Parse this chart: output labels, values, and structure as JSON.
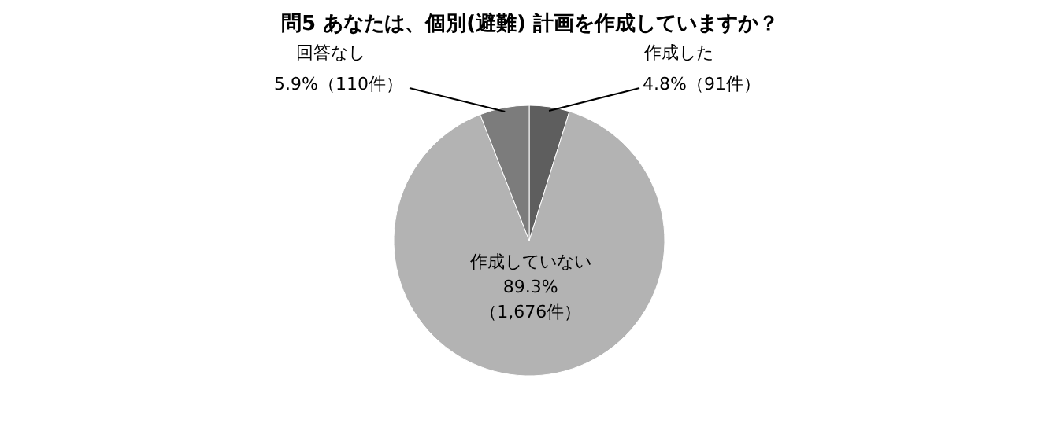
{
  "chart_data": {
    "type": "pie",
    "title": "問5 あなたは、個別(避難) 計画を作成していますか？",
    "categories": [
      "作成した",
      "作成していない",
      "回答なし"
    ],
    "values": [
      4.8,
      89.3,
      5.9
    ],
    "value_labels": [
      "4.8%（91件）",
      "89.3%（1,676件）",
      "5.9%（110件）"
    ],
    "colors": [
      "#5e5e5e",
      "#b3b3b3",
      "#7c7c7c"
    ]
  }
}
